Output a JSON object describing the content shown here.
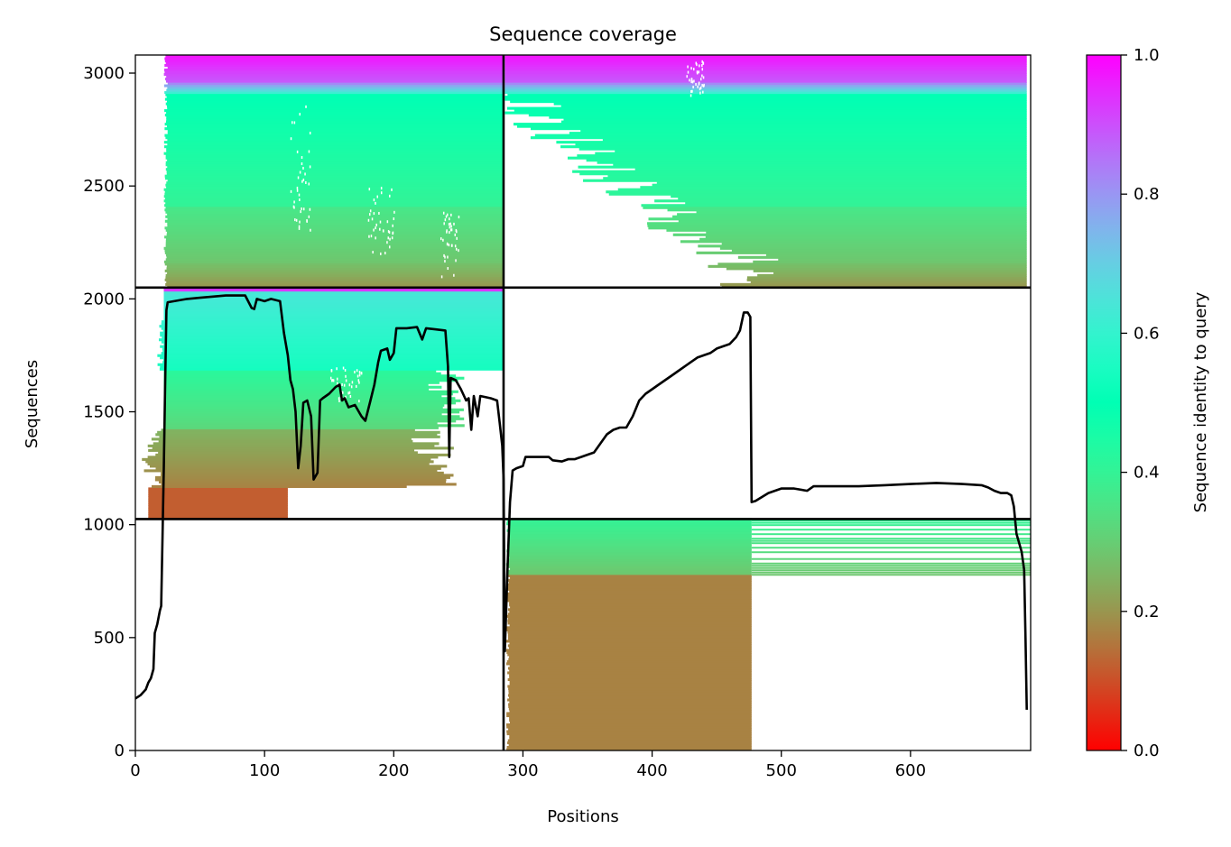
{
  "chart_data": {
    "type": "heatmap",
    "title": "Sequence coverage",
    "xlabel": "Positions",
    "ylabel": "Sequences",
    "xlim": [
      0,
      693
    ],
    "ylim": [
      0,
      3080
    ],
    "x_ticks": [
      0,
      100,
      200,
      300,
      400,
      500,
      600
    ],
    "y_ticks": [
      0,
      500,
      1000,
      1500,
      2000,
      2500,
      3000
    ],
    "colorbar": {
      "label": "Sequence identity to query",
      "range": [
        0,
        1
      ],
      "ticks": [
        "0.0",
        "0.2",
        "0.4",
        "0.6",
        "0.8",
        "1.0"
      ],
      "colormap": "rainbow_r"
    },
    "block_boundaries": {
      "x": [
        285
      ],
      "y": [
        1025,
        2050
      ]
    },
    "blocks": [
      {
        "x": [
          0,
          285
        ],
        "y": [
          2050,
          3080
        ],
        "identity_range": [
          0.18,
          1.0
        ],
        "coverage": "dense from x≈22 to 285"
      },
      {
        "x": [
          285,
          693
        ],
        "y": [
          2050,
          3080
        ],
        "identity_range": [
          0.18,
          1.0
        ],
        "coverage": "staircase, dense toward right"
      },
      {
        "x": [
          0,
          285
        ],
        "y": [
          1025,
          2050
        ],
        "identity_range": [
          0.1,
          0.95
        ],
        "coverage": "dense upper, sparse lower"
      },
      {
        "x": [
          285,
          693
        ],
        "y": [
          0,
          1025
        ],
        "identity_range": [
          0.15,
          0.4
        ],
        "coverage": "dense x 285-477, sparse lines to 693 in upper part"
      }
    ],
    "coverage_line": {
      "color": "#000000",
      "points": [
        [
          0,
          230
        ],
        [
          4,
          245
        ],
        [
          8,
          270
        ],
        [
          10,
          300
        ],
        [
          12,
          320
        ],
        [
          14,
          360
        ],
        [
          15,
          520
        ],
        [
          17,
          560
        ],
        [
          19,
          620
        ],
        [
          20,
          640
        ],
        [
          21,
          950
        ],
        [
          22,
          1250
        ],
        [
          23,
          1600
        ],
        [
          24,
          1950
        ],
        [
          25,
          1985
        ],
        [
          30,
          1990
        ],
        [
          40,
          2000
        ],
        [
          50,
          2005
        ],
        [
          60,
          2010
        ],
        [
          70,
          2015
        ],
        [
          85,
          2015
        ],
        [
          90,
          1960
        ],
        [
          92,
          1955
        ],
        [
          94,
          2000
        ],
        [
          100,
          1990
        ],
        [
          105,
          2000
        ],
        [
          112,
          1990
        ],
        [
          115,
          1850
        ],
        [
          118,
          1750
        ],
        [
          120,
          1640
        ],
        [
          122,
          1600
        ],
        [
          124,
          1500
        ],
        [
          126,
          1250
        ],
        [
          128,
          1350
        ],
        [
          130,
          1540
        ],
        [
          133,
          1550
        ],
        [
          136,
          1480
        ],
        [
          138,
          1200
        ],
        [
          141,
          1230
        ],
        [
          143,
          1550
        ],
        [
          145,
          1560
        ],
        [
          150,
          1580
        ],
        [
          155,
          1610
        ],
        [
          158,
          1620
        ],
        [
          160,
          1550
        ],
        [
          162,
          1560
        ],
        [
          165,
          1520
        ],
        [
          170,
          1530
        ],
        [
          175,
          1480
        ],
        [
          178,
          1460
        ],
        [
          182,
          1550
        ],
        [
          185,
          1620
        ],
        [
          188,
          1720
        ],
        [
          190,
          1770
        ],
        [
          195,
          1780
        ],
        [
          197,
          1730
        ],
        [
          200,
          1760
        ],
        [
          202,
          1870
        ],
        [
          210,
          1870
        ],
        [
          218,
          1875
        ],
        [
          222,
          1820
        ],
        [
          225,
          1870
        ],
        [
          232,
          1865
        ],
        [
          240,
          1860
        ],
        [
          242,
          1700
        ],
        [
          243,
          1300
        ],
        [
          244,
          1650
        ],
        [
          248,
          1640
        ],
        [
          252,
          1600
        ],
        [
          256,
          1550
        ],
        [
          258,
          1560
        ],
        [
          260,
          1420
        ],
        [
          262,
          1570
        ],
        [
          265,
          1480
        ],
        [
          267,
          1570
        ],
        [
          275,
          1560
        ],
        [
          280,
          1550
        ],
        [
          282,
          1450
        ],
        [
          284,
          1350
        ],
        [
          285,
          1200
        ],
        [
          286,
          440
        ],
        [
          288,
          800
        ],
        [
          290,
          1100
        ],
        [
          292,
          1240
        ],
        [
          295,
          1250
        ],
        [
          300,
          1260
        ],
        [
          302,
          1300
        ],
        [
          310,
          1300
        ],
        [
          320,
          1300
        ],
        [
          323,
          1285
        ],
        [
          330,
          1280
        ],
        [
          335,
          1290
        ],
        [
          340,
          1290
        ],
        [
          345,
          1300
        ],
        [
          350,
          1310
        ],
        [
          355,
          1320
        ],
        [
          360,
          1360
        ],
        [
          365,
          1400
        ],
        [
          370,
          1420
        ],
        [
          375,
          1430
        ],
        [
          380,
          1430
        ],
        [
          385,
          1480
        ],
        [
          390,
          1550
        ],
        [
          395,
          1580
        ],
        [
          400,
          1600
        ],
        [
          405,
          1620
        ],
        [
          410,
          1640
        ],
        [
          415,
          1660
        ],
        [
          420,
          1680
        ],
        [
          425,
          1700
        ],
        [
          430,
          1720
        ],
        [
          435,
          1740
        ],
        [
          440,
          1750
        ],
        [
          445,
          1760
        ],
        [
          450,
          1780
        ],
        [
          455,
          1790
        ],
        [
          460,
          1800
        ],
        [
          465,
          1830
        ],
        [
          468,
          1860
        ],
        [
          471,
          1940
        ],
        [
          474,
          1940
        ],
        [
          476,
          1920
        ],
        [
          477,
          1100
        ],
        [
          480,
          1105
        ],
        [
          490,
          1140
        ],
        [
          500,
          1160
        ],
        [
          510,
          1160
        ],
        [
          520,
          1150
        ],
        [
          525,
          1170
        ],
        [
          540,
          1170
        ],
        [
          560,
          1170
        ],
        [
          580,
          1175
        ],
        [
          600,
          1180
        ],
        [
          620,
          1185
        ],
        [
          640,
          1180
        ],
        [
          655,
          1175
        ],
        [
          660,
          1165
        ],
        [
          665,
          1150
        ],
        [
          670,
          1140
        ],
        [
          675,
          1140
        ],
        [
          678,
          1130
        ],
        [
          680,
          1080
        ],
        [
          682,
          960
        ],
        [
          686,
          880
        ],
        [
          688,
          800
        ],
        [
          689,
          500
        ],
        [
          690,
          180
        ]
      ]
    }
  }
}
